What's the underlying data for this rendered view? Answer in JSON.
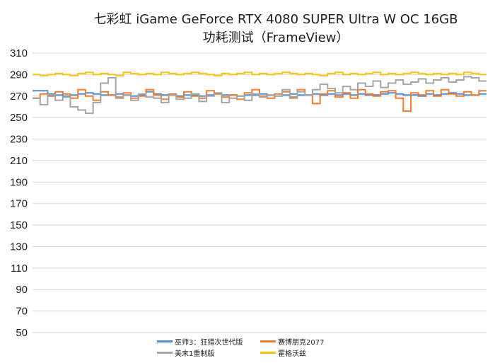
{
  "title": {
    "line1": "七彩虹 iGame GeForce RTX 4080 SUPER Ultra W OC 16GB",
    "line2": "功耗测试（FrameView）"
  },
  "legend": [
    {
      "name": "巫师3：狂猎次世代版",
      "color": "#4a90d9"
    },
    {
      "name": "赛博朋克2077",
      "color": "#ee7d31"
    },
    {
      "name": "美末1重制版",
      "color": "#a5a5a5"
    },
    {
      "name": "霍格沃兹",
      "color": "#fdc20b"
    }
  ],
  "chart_data": {
    "type": "line",
    "title": "七彩虹 iGame GeForce RTX 4080 SUPER Ultra W OC 16GB 功耗测试（FrameView）",
    "xlabel": "",
    "ylabel": "",
    "ylim": [
      50,
      310
    ],
    "yticks": [
      50,
      70,
      90,
      110,
      130,
      150,
      170,
      190,
      210,
      230,
      250,
      270,
      290,
      310
    ],
    "grid": true,
    "legend_position": "bottom",
    "x_samples": 60,
    "series": [
      {
        "name": "巫师3：狂猎次世代版",
        "color": "#4a90d9",
        "values": [
          275,
          275,
          272,
          271,
          270,
          271,
          272,
          273,
          272,
          271,
          271,
          272,
          271,
          270,
          271,
          274,
          272,
          271,
          271,
          270,
          271,
          271,
          270,
          271,
          272,
          271,
          271,
          270,
          271,
          271,
          272,
          271,
          270,
          271,
          272,
          271,
          271,
          272,
          271,
          272,
          271,
          272,
          271,
          272,
          271,
          271,
          272,
          273,
          272,
          271,
          271,
          270,
          272,
          271,
          272,
          273,
          272,
          271,
          271,
          272
        ]
      },
      {
        "name": "赛博朋克2077",
        "color": "#ee7d31",
        "values": [
          268,
          272,
          270,
          274,
          272,
          268,
          276,
          270,
          266,
          274,
          271,
          269,
          273,
          268,
          270,
          276,
          271,
          267,
          272,
          269,
          274,
          270,
          268,
          275,
          272,
          269,
          271,
          267,
          273,
          276,
          270,
          268,
          272,
          274,
          269,
          276,
          271,
          263,
          272,
          275,
          269,
          273,
          268,
          276,
          272,
          270,
          274,
          275,
          268,
          256,
          273,
          271,
          275,
          270,
          276,
          272,
          270,
          274,
          271,
          275
        ]
      },
      {
        "name": "美末1重制版",
        "color": "#a5a5a5",
        "values": [
          268,
          262,
          271,
          266,
          269,
          260,
          257,
          254,
          264,
          282,
          287,
          268,
          271,
          266,
          272,
          269,
          268,
          264,
          271,
          267,
          268,
          272,
          265,
          270,
          273,
          264,
          268,
          270,
          266,
          272,
          269,
          271,
          270,
          276,
          268,
          274,
          271,
          276,
          281,
          277,
          273,
          279,
          276,
          282,
          279,
          284,
          278,
          282,
          285,
          281,
          283,
          286,
          282,
          285,
          287,
          283,
          285,
          288,
          287,
          284
        ]
      },
      {
        "name": "霍格沃兹",
        "color": "#fdc20b",
        "values": [
          290,
          289,
          290,
          291,
          290,
          289,
          291,
          292,
          290,
          291,
          290,
          289,
          292,
          291,
          290,
          291,
          290,
          292,
          291,
          290,
          291,
          292,
          291,
          290,
          289,
          291,
          290,
          291,
          292,
          290,
          291,
          290,
          291,
          292,
          291,
          290,
          291,
          290,
          289,
          291,
          292,
          290,
          291,
          290,
          291,
          292,
          290,
          291,
          290,
          291,
          292,
          291,
          290,
          291,
          290,
          291,
          290,
          292,
          291,
          290
        ]
      }
    ]
  }
}
